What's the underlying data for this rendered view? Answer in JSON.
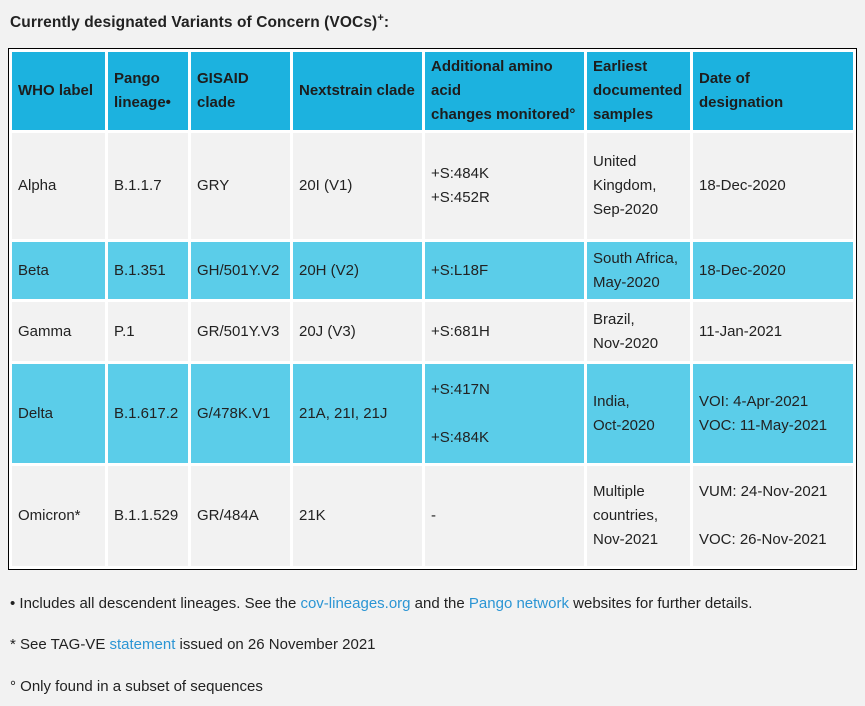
{
  "colors": {
    "page_bg": "#f2f2f2",
    "header_bg": "#1cb2df",
    "highlight_bg": "#5bcde9",
    "cell_bg": "#f2f2f2",
    "gap_bg": "#ffffff",
    "border_color": "#000000",
    "text_color": "#222222",
    "link_color": "#2b95d4"
  },
  "title": {
    "text": "Currently designated Variants of Concern (VOCs)",
    "superscript": "+",
    "suffix": ":"
  },
  "table": {
    "columns": [
      "WHO label",
      "Pango\nlineage•",
      "GISAID\nclade",
      "Nextstrain clade",
      "Additional amino\nacid\nchanges monitored°",
      "Earliest\ndocumented\nsamples",
      "Date of\ndesignation"
    ],
    "rows": [
      {
        "who_label": "Alpha",
        "pango_lineage": "B.1.1.7",
        "gisaid_clade": "GRY",
        "nextstrain_clade": "20I (V1)",
        "amino_acid_changes": "+S:484K\n+S:452R",
        "earliest_samples": "United\nKingdom,\nSep-2020",
        "date_of_designation": "18-Dec-2020",
        "highlighted": false
      },
      {
        "who_label": "Beta",
        "pango_lineage": "B.1.351",
        "gisaid_clade": "GH/501Y.V2",
        "nextstrain_clade": "20H (V2)",
        "amino_acid_changes": "+S:L18F",
        "earliest_samples": "South Africa,\nMay-2020",
        "date_of_designation": "18-Dec-2020",
        "highlighted": true
      },
      {
        "who_label": "Gamma",
        "pango_lineage": "P.1",
        "gisaid_clade": "GR/501Y.V3",
        "nextstrain_clade": "20J (V3)",
        "amino_acid_changes": "+S:681H",
        "earliest_samples": "Brazil,\nNov-2020",
        "date_of_designation": "11-Jan-2021",
        "highlighted": false
      },
      {
        "who_label": "Delta",
        "pango_lineage": "B.1.617.2",
        "gisaid_clade": "G/478K.V1",
        "nextstrain_clade": "21A, 21I, 21J",
        "amino_acid_changes": "+S:417N\n\n+S:484K",
        "earliest_samples": "India,\nOct-2020",
        "date_of_designation": "VOI: 4-Apr-2021\nVOC: 11-May-2021",
        "highlighted": true
      },
      {
        "who_label": "Omicron*",
        "pango_lineage": "B.1.1.529",
        "gisaid_clade": "GR/484A",
        "nextstrain_clade": "21K",
        "amino_acid_changes": "-",
        "earliest_samples": "Multiple\ncountries,\nNov-2021",
        "date_of_designation": "VUM: 24-Nov-2021\n\nVOC: 26-Nov-2021",
        "highlighted": false
      }
    ]
  },
  "footnotes": {
    "descendent": {
      "prefix": "• Includes all descendent lineages. See the ",
      "link1": "cov-lineages.org",
      "middle": " and the ",
      "link2": "Pango network",
      "suffix": " websites for further details."
    },
    "tagve": {
      "prefix": "* See TAG-VE ",
      "link": "statement",
      "suffix": " issued on 26 November 2021"
    },
    "subset": {
      "text": "° Only found in a subset of sequences"
    }
  }
}
